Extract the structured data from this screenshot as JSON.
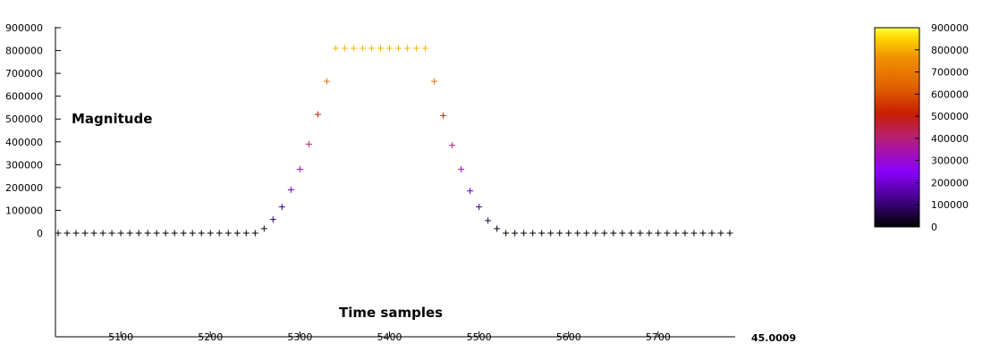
{
  "chart_data": {
    "type": "scatter",
    "marker": "+",
    "ylabel": "Magnitude",
    "xlabel": "Time samples",
    "xlim": [
      5027,
      5785
    ],
    "ylim": [
      0,
      900000
    ],
    "x_ticks": [
      "5100",
      "5200",
      "5300",
      "5400",
      "5500",
      "5600",
      "5700"
    ],
    "y_ticks": [
      "0",
      "100000",
      "200000",
      "300000",
      "400000",
      "500000",
      "600000",
      "700000",
      "800000",
      "900000"
    ],
    "x_artifact_label": "45.0009",
    "colorbar": {
      "range": [
        0,
        900000
      ],
      "ticks": [
        "0",
        "100000",
        "200000",
        "300000",
        "400000",
        "500000",
        "600000",
        "700000",
        "800000",
        "900000"
      ],
      "colors": [
        "#000000",
        "#3a0078",
        "#8b00ff",
        "#b82070",
        "#c81e00",
        "#e06000",
        "#f09000",
        "#ffd800",
        "#ffff40"
      ]
    },
    "series": [
      {
        "x": [
          5030,
          5040,
          5050,
          5060,
          5070,
          5080,
          5090,
          5100,
          5110,
          5120,
          5130,
          5140,
          5150,
          5160,
          5170,
          5180,
          5190,
          5200,
          5210,
          5220,
          5230,
          5240,
          5250,
          5260,
          5270,
          5280,
          5290,
          5300,
          5310,
          5320,
          5330,
          5340,
          5350,
          5360,
          5370,
          5380,
          5390,
          5400,
          5410,
          5420,
          5430,
          5440,
          5450,
          5460,
          5470,
          5480,
          5490,
          5500,
          5510,
          5520,
          5530,
          5540,
          5550,
          5560,
          5570,
          5580,
          5590,
          5600,
          5610,
          5620,
          5630,
          5640,
          5650,
          5660,
          5670,
          5680,
          5690,
          5700,
          5710,
          5720,
          5730,
          5740,
          5750,
          5760,
          5770,
          5780
        ],
        "y": [
          0,
          0,
          0,
          0,
          0,
          0,
          0,
          0,
          0,
          0,
          0,
          0,
          0,
          0,
          0,
          0,
          0,
          0,
          0,
          0,
          0,
          0,
          0,
          20000,
          60000,
          115000,
          190000,
          280000,
          390000,
          520000,
          665000,
          810000,
          810000,
          810000,
          810000,
          810000,
          810000,
          810000,
          810000,
          810000,
          810000,
          810000,
          665000,
          515000,
          385000,
          280000,
          185000,
          115000,
          55000,
          20000,
          0,
          0,
          0,
          0,
          0,
          0,
          0,
          0,
          0,
          0,
          0,
          0,
          0,
          0,
          0,
          0,
          0,
          0,
          0,
          0,
          0,
          0,
          0,
          0,
          0,
          0
        ]
      }
    ]
  }
}
